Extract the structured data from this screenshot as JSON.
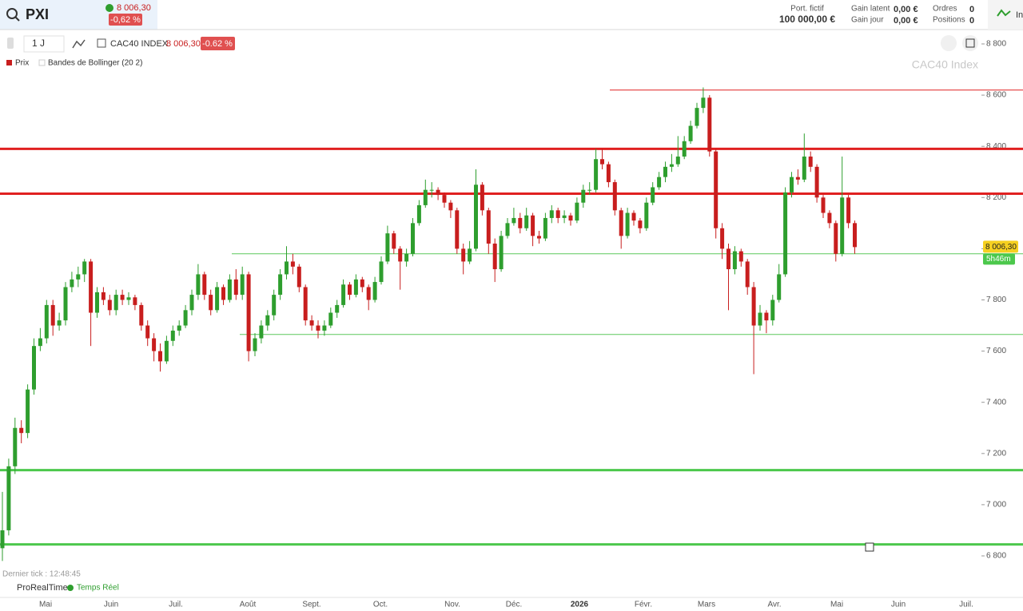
{
  "header": {
    "symbol": "PXI",
    "price": "8 006,30",
    "change": "-0,62 %",
    "portfolio_label": "Port. fictif",
    "portfolio_value": "100 000,00 €",
    "latent_label": "Gain latent",
    "latent_value": "0,00 €",
    "day_label": "Gain jour",
    "day_value": "0,00 €",
    "orders_label": "Ordres",
    "orders_value": "0",
    "positions_label": "Positions",
    "positions_value": "0",
    "menu": "In"
  },
  "toolbar": {
    "period": "1 J",
    "instrument": "CAC40 INDEX",
    "price": "8 006,30",
    "change": "-0.62 %",
    "legend_price": "Prix",
    "legend_bollinger": "Bandes de Bollinger (20 2)"
  },
  "footer": {
    "last_tick": "Dernier tick : 12:48:45",
    "brand": "ProRealTime",
    "realtime": "Temps Réel"
  },
  "chart_data": {
    "type": "candlestick",
    "title": "CAC40 Index",
    "up_color": "#2e9e2e",
    "down_color": "#c81e1e",
    "xtick_labels": [
      "Mai",
      "Juin",
      "Juil.",
      "Août",
      "Sept.",
      "Oct.",
      "Nov.",
      "Déc.",
      "2026",
      "Févr.",
      "Mars",
      "Avr.",
      "Mai",
      "Juin",
      "Juil."
    ],
    "ylim": [
      6800,
      8800
    ],
    "yticks": [
      {
        "value": 6800,
        "label": "6 800"
      },
      {
        "value": 7000,
        "label": "7 000"
      },
      {
        "value": 7200,
        "label": "7 200"
      },
      {
        "value": 7400,
        "label": "7 400"
      },
      {
        "value": 7600,
        "label": "7 600"
      },
      {
        "value": 7800,
        "label": "7 800"
      },
      {
        "value": 8000,
        "label": "8 000"
      },
      {
        "value": 8200,
        "label": "8 200"
      },
      {
        "value": 8400,
        "label": "8 400"
      },
      {
        "value": 8600,
        "label": "8 600"
      },
      {
        "value": 8800,
        "label": "8 800"
      }
    ],
    "last": {
      "value": 8006.3,
      "label": "8 006,30"
    },
    "countdown": "5h46m",
    "levels": [
      {
        "value": 8620,
        "color": "#e02020",
        "thick": false
      },
      {
        "value": 8390,
        "color": "#e02020",
        "thick": true
      },
      {
        "value": 8215,
        "color": "#e02020",
        "thick": true
      },
      {
        "value": 7980,
        "color": "#5cc85c",
        "thick": false
      },
      {
        "value": 7665,
        "color": "#5cc85c",
        "thick": false
      },
      {
        "value": 7135,
        "color": "#4cc84c",
        "thick": true
      },
      {
        "value": 6845,
        "color": "#4cc84c",
        "thick": true
      }
    ],
    "candles": [
      [
        6830,
        7050,
        6780,
        6900
      ],
      [
        6900,
        7180,
        6880,
        7150
      ],
      [
        7150,
        7340,
        7120,
        7300
      ],
      [
        7300,
        7330,
        7240,
        7280
      ],
      [
        7280,
        7470,
        7260,
        7450
      ],
      [
        7450,
        7650,
        7430,
        7620
      ],
      [
        7620,
        7690,
        7600,
        7650
      ],
      [
        7650,
        7800,
        7630,
        7780
      ],
      [
        7780,
        7800,
        7660,
        7700
      ],
      [
        7700,
        7750,
        7680,
        7720
      ],
      [
        7720,
        7870,
        7700,
        7850
      ],
      [
        7850,
        7910,
        7830,
        7880
      ],
      [
        7880,
        7930,
        7850,
        7900
      ],
      [
        7900,
        7960,
        7870,
        7950
      ],
      [
        7950,
        7960,
        7620,
        7750
      ],
      [
        7750,
        7850,
        7730,
        7830
      ],
      [
        7830,
        7850,
        7780,
        7800
      ],
      [
        7800,
        7820,
        7740,
        7760
      ],
      [
        7760,
        7840,
        7740,
        7820
      ],
      [
        7820,
        7840,
        7780,
        7800
      ],
      [
        7800,
        7830,
        7780,
        7810
      ],
      [
        7810,
        7820,
        7760,
        7780
      ],
      [
        7780,
        7790,
        7680,
        7700
      ],
      [
        7700,
        7720,
        7620,
        7650
      ],
      [
        7650,
        7670,
        7560,
        7600
      ],
      [
        7600,
        7630,
        7520,
        7560
      ],
      [
        7560,
        7660,
        7550,
        7640
      ],
      [
        7640,
        7700,
        7620,
        7680
      ],
      [
        7680,
        7720,
        7660,
        7700
      ],
      [
        7700,
        7780,
        7690,
        7760
      ],
      [
        7760,
        7840,
        7740,
        7820
      ],
      [
        7820,
        7940,
        7800,
        7900
      ],
      [
        7900,
        7910,
        7800,
        7820
      ],
      [
        7820,
        7840,
        7740,
        7760
      ],
      [
        7760,
        7870,
        7750,
        7850
      ],
      [
        7850,
        7860,
        7780,
        7800
      ],
      [
        7800,
        7900,
        7790,
        7880
      ],
      [
        7880,
        7920,
        7800,
        7820
      ],
      [
        7820,
        7930,
        7800,
        7900
      ],
      [
        7900,
        7910,
        7560,
        7600
      ],
      [
        7600,
        7670,
        7580,
        7650
      ],
      [
        7650,
        7720,
        7630,
        7700
      ],
      [
        7700,
        7760,
        7680,
        7740
      ],
      [
        7740,
        7840,
        7720,
        7820
      ],
      [
        7820,
        7920,
        7800,
        7900
      ],
      [
        7900,
        8010,
        7880,
        7950
      ],
      [
        7950,
        7980,
        7900,
        7930
      ],
      [
        7930,
        7940,
        7830,
        7850
      ],
      [
        7850,
        7860,
        7700,
        7720
      ],
      [
        7720,
        7740,
        7680,
        7700
      ],
      [
        7700,
        7720,
        7650,
        7680
      ],
      [
        7680,
        7720,
        7660,
        7700
      ],
      [
        7700,
        7770,
        7690,
        7750
      ],
      [
        7750,
        7800,
        7730,
        7780
      ],
      [
        7780,
        7880,
        7770,
        7860
      ],
      [
        7860,
        7870,
        7800,
        7820
      ],
      [
        7820,
        7900,
        7810,
        7880
      ],
      [
        7880,
        7890,
        7830,
        7850
      ],
      [
        7850,
        7860,
        7760,
        7800
      ],
      [
        7800,
        7890,
        7790,
        7870
      ],
      [
        7870,
        7970,
        7860,
        7950
      ],
      [
        7950,
        8090,
        7940,
        8060
      ],
      [
        8060,
        8070,
        7980,
        8000
      ],
      [
        8000,
        8010,
        7840,
        7950
      ],
      [
        7950,
        8000,
        7930,
        7980
      ],
      [
        7980,
        8120,
        7970,
        8100
      ],
      [
        8100,
        8190,
        8090,
        8170
      ],
      [
        8170,
        8270,
        8160,
        8230
      ],
      [
        8230,
        8260,
        8200,
        8230
      ],
      [
        8230,
        8240,
        8190,
        8210
      ],
      [
        8210,
        8220,
        8160,
        8180
      ],
      [
        8180,
        8190,
        8120,
        8150
      ],
      [
        8150,
        8160,
        7980,
        8000
      ],
      [
        8000,
        8020,
        7900,
        7950
      ],
      [
        7950,
        8030,
        7940,
        8000
      ],
      [
        8000,
        8310,
        7990,
        8250
      ],
      [
        8250,
        8260,
        8130,
        8150
      ],
      [
        8150,
        8160,
        7980,
        8020
      ],
      [
        8020,
        8040,
        7870,
        7920
      ],
      [
        7920,
        8070,
        7910,
        8050
      ],
      [
        8050,
        8120,
        8040,
        8100
      ],
      [
        8100,
        8160,
        8090,
        8120
      ],
      [
        8120,
        8140,
        8060,
        8080
      ],
      [
        8080,
        8160,
        8070,
        8130
      ],
      [
        8130,
        8140,
        8010,
        8050
      ],
      [
        8050,
        8070,
        8020,
        8040
      ],
      [
        8040,
        8140,
        8030,
        8120
      ],
      [
        8120,
        8170,
        8100,
        8150
      ],
      [
        8150,
        8160,
        8100,
        8120
      ],
      [
        8120,
        8150,
        8100,
        8130
      ],
      [
        8130,
        8140,
        8090,
        8110
      ],
      [
        8110,
        8200,
        8100,
        8180
      ],
      [
        8180,
        8250,
        8160,
        8230
      ],
      [
        8230,
        8260,
        8210,
        8230
      ],
      [
        8230,
        8390,
        8220,
        8350
      ],
      [
        8350,
        8390,
        8310,
        8330
      ],
      [
        8330,
        8340,
        8240,
        8260
      ],
      [
        8260,
        8270,
        8130,
        8150
      ],
      [
        8150,
        8160,
        8000,
        8050
      ],
      [
        8050,
        8160,
        8040,
        8140
      ],
      [
        8140,
        8150,
        8090,
        8110
      ],
      [
        8110,
        8120,
        8060,
        8080
      ],
      [
        8080,
        8200,
        8070,
        8180
      ],
      [
        8180,
        8260,
        8170,
        8240
      ],
      [
        8240,
        8300,
        8230,
        8280
      ],
      [
        8280,
        8340,
        8260,
        8320
      ],
      [
        8320,
        8370,
        8300,
        8330
      ],
      [
        8330,
        8440,
        8320,
        8360
      ],
      [
        8360,
        8440,
        8350,
        8420
      ],
      [
        8420,
        8500,
        8410,
        8480
      ],
      [
        8480,
        8570,
        8470,
        8550
      ],
      [
        8550,
        8630,
        8530,
        8590
      ],
      [
        8590,
        8600,
        8360,
        8380
      ],
      [
        8380,
        8390,
        8040,
        8080
      ],
      [
        8080,
        8100,
        7960,
        8000
      ],
      [
        8000,
        8020,
        7760,
        7920
      ],
      [
        7920,
        8010,
        7900,
        7990
      ],
      [
        7990,
        8000,
        7930,
        7950
      ],
      [
        7950,
        7960,
        7820,
        7850
      ],
      [
        7850,
        7870,
        7510,
        7700
      ],
      [
        7700,
        7780,
        7680,
        7750
      ],
      [
        7750,
        7760,
        7670,
        7720
      ],
      [
        7720,
        7820,
        7700,
        7800
      ],
      [
        7800,
        7940,
        7790,
        7900
      ],
      [
        7900,
        8240,
        7890,
        8220
      ],
      [
        8220,
        8300,
        8200,
        8280
      ],
      [
        8280,
        8310,
        8250,
        8270
      ],
      [
        8270,
        8450,
        8260,
        8360
      ],
      [
        8360,
        8380,
        8300,
        8320
      ],
      [
        8320,
        8330,
        8180,
        8200
      ],
      [
        8200,
        8210,
        8120,
        8140
      ],
      [
        8140,
        8150,
        8080,
        8100
      ],
      [
        8100,
        8110,
        7950,
        7980
      ],
      [
        7980,
        8360,
        7970,
        8200
      ],
      [
        8200,
        8210,
        8080,
        8100
      ],
      [
        8100,
        8110,
        7980,
        8006.3
      ]
    ]
  }
}
